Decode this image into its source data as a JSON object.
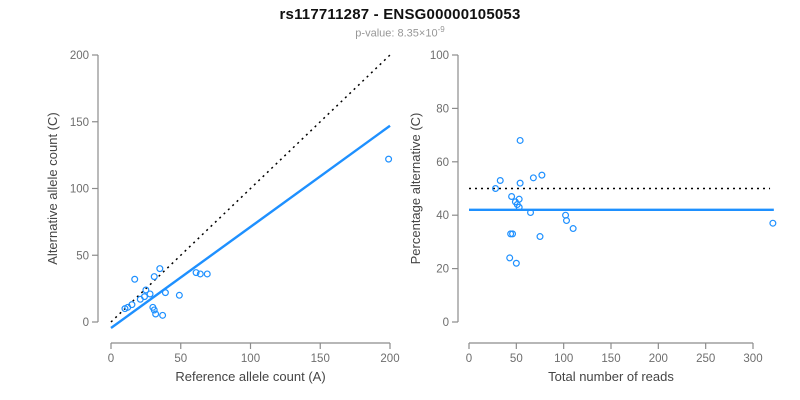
{
  "header": {
    "title": "rs117711287 - ENSG00000105053",
    "subtitle_text": "p-value: 8.35×10",
    "subtitle_exponent": "-9"
  },
  "colors": {
    "accent": "#1E90FF",
    "dotted_line": "#000000",
    "axis": "#8c8c8c"
  },
  "chart_data": [
    {
      "type": "scatter",
      "panel": "allele-counts",
      "xlabel": "Reference allele count (A)",
      "ylabel": "Alternative allele count (C)",
      "xlim": [
        0,
        200
      ],
      "ylim": [
        0,
        200
      ],
      "xticks": [
        0,
        50,
        100,
        150,
        200
      ],
      "yticks": [
        0,
        50,
        100,
        150,
        200
      ],
      "grid": false,
      "point_color": "#1E90FF",
      "points": [
        [
          17,
          32
        ],
        [
          35,
          40
        ],
        [
          31,
          34
        ],
        [
          25,
          24
        ],
        [
          28,
          21
        ],
        [
          24,
          19
        ],
        [
          21,
          17
        ],
        [
          15,
          13
        ],
        [
          12,
          11
        ],
        [
          10,
          10
        ],
        [
          30,
          11
        ],
        [
          31,
          9
        ],
        [
          32,
          6
        ],
        [
          37,
          5
        ],
        [
          39,
          22
        ],
        [
          49,
          20
        ],
        [
          61,
          37
        ],
        [
          64,
          36
        ],
        [
          69,
          36
        ],
        [
          199,
          122
        ]
      ],
      "lines": [
        {
          "name": "identity-line",
          "style": "dotted",
          "color": "#000000",
          "x1": 0,
          "y1": 0,
          "x2": 200,
          "y2": 200
        },
        {
          "name": "regression-line",
          "style": "solid",
          "color": "#1E90FF",
          "x1": 0,
          "y1": -4.5,
          "x2": 200,
          "y2": 147
        }
      ]
    },
    {
      "type": "scatter",
      "panel": "percentage-alternative",
      "xlabel": "Total number of reads",
      "ylabel": "Percentage alternative (C)",
      "xlim": [
        0,
        300
      ],
      "ylim": [
        0,
        100
      ],
      "xticks": [
        0,
        50,
        100,
        150,
        200,
        250,
        300
      ],
      "yticks": [
        0,
        20,
        40,
        60,
        80,
        100
      ],
      "grid": false,
      "point_color": "#1E90FF",
      "points": [
        [
          54,
          68
        ],
        [
          33,
          53
        ],
        [
          28,
          50
        ],
        [
          54,
          52
        ],
        [
          68,
          54
        ],
        [
          77,
          55
        ],
        [
          45,
          47
        ],
        [
          49,
          45
        ],
        [
          53,
          46
        ],
        [
          51,
          44
        ],
        [
          53,
          43
        ],
        [
          65,
          41
        ],
        [
          102,
          40
        ],
        [
          103,
          38
        ],
        [
          110,
          35
        ],
        [
          44,
          33
        ],
        [
          46,
          33
        ],
        [
          75,
          32
        ],
        [
          43,
          24
        ],
        [
          50,
          22
        ],
        [
          321,
          37
        ]
      ],
      "lines": [
        {
          "name": "null-line",
          "style": "dotted",
          "color": "#000000",
          "x1": 0,
          "y1": 50,
          "x2": 318,
          "y2": 50
        },
        {
          "name": "mean-line",
          "style": "solid",
          "color": "#1E90FF",
          "x1": 0,
          "y1": 42,
          "x2": 322,
          "y2": 42
        }
      ]
    }
  ]
}
